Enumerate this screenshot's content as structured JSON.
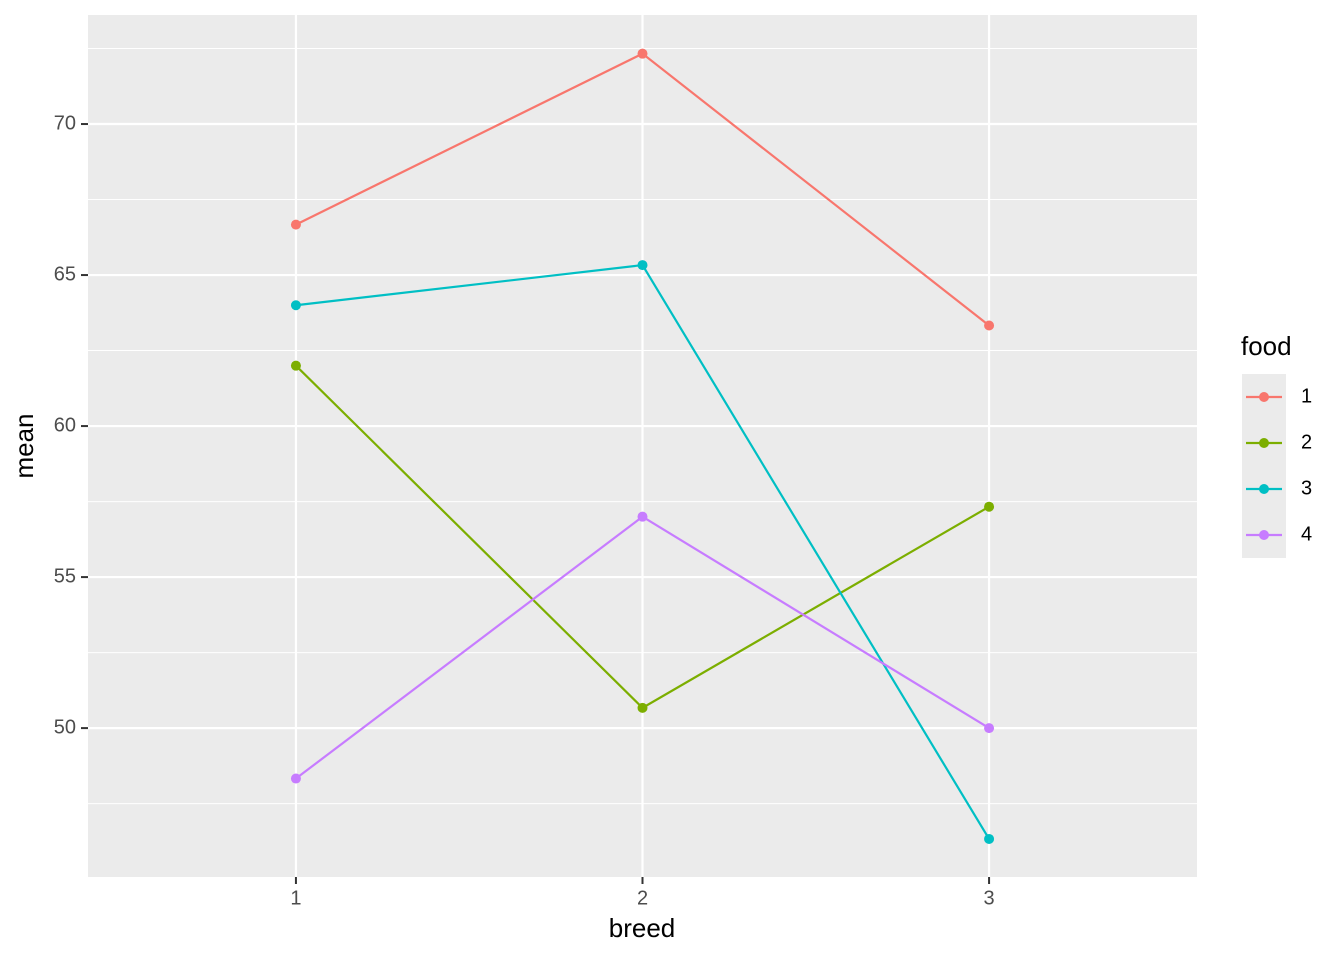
{
  "chart_data": {
    "type": "line",
    "x_label": "breed",
    "y_label": "mean",
    "x": [
      1,
      2,
      3
    ],
    "series": [
      {
        "name": "1",
        "color": "#F8766D",
        "values": [
          66.67,
          72.33,
          63.33
        ]
      },
      {
        "name": "2",
        "color": "#7CAE00",
        "values": [
          62,
          50.67,
          57.33
        ]
      },
      {
        "name": "3",
        "color": "#00BFC4",
        "values": [
          64,
          65.33,
          46.33
        ]
      },
      {
        "name": "4",
        "color": "#C77CFF",
        "values": [
          48.33,
          57,
          50
        ]
      }
    ],
    "xlim": [
      0.4,
      3.6
    ],
    "xticks": [
      1,
      2,
      3
    ],
    "ylim": [
      45.07,
      73.61
    ],
    "yticks": [
      50,
      55,
      60,
      65,
      70
    ],
    "grid": true,
    "legend_title": "food",
    "legend_position": "right"
  }
}
